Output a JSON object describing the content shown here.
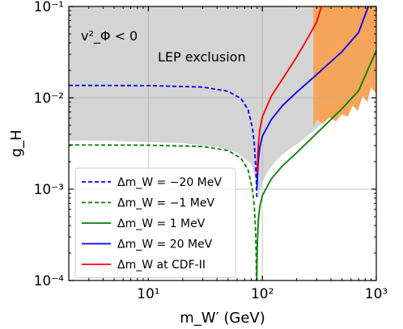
{
  "chart_data": {
    "type": "line",
    "xscale": "log",
    "yscale": "log",
    "xlim": [
      2,
      1000
    ],
    "ylim": [
      0.0001,
      0.1
    ],
    "x_ticks": [
      {
        "value": 10,
        "label": "10¹"
      },
      {
        "value": 100,
        "label": "10²"
      },
      {
        "value": 1000,
        "label": "10³"
      }
    ],
    "y_ticks": [
      {
        "value": 0.1,
        "label": "10⁻¹"
      },
      {
        "value": 0.01,
        "label": "10⁻²"
      },
      {
        "value": 0.001,
        "label": "10⁻³"
      },
      {
        "value": 0.0001,
        "label": "10⁻⁴"
      }
    ],
    "xlabel": "m_W′ (GeV)",
    "ylabel": "g_H",
    "grid": true,
    "legend_position": "lower-left",
    "annotations": [
      "v²_Φ < 0",
      "LEP exclusion"
    ],
    "regions": [
      {
        "name": "v²_Φ < 0",
        "color": "#6b6b6b",
        "points": [
          [
            2,
            0.1
          ],
          [
            23,
            0.1
          ],
          [
            2,
            0.007
          ]
        ]
      },
      {
        "name": "LEP exclusion",
        "color": "#d4d4d4",
        "points": [
          [
            2,
            0.1
          ],
          [
            1000,
            0.1
          ],
          [
            1000,
            0.026
          ],
          [
            600,
            0.011
          ],
          [
            400,
            0.0065
          ],
          [
            280,
            0.0043
          ],
          [
            200,
            0.0031
          ],
          [
            150,
            0.0024
          ],
          [
            125,
            0.0019
          ],
          [
            110,
            0.0015
          ],
          [
            100,
            0.0012
          ],
          [
            93,
            0.0008
          ],
          [
            88,
            0.0012
          ],
          [
            80,
            0.0019
          ],
          [
            60,
            0.0025
          ],
          [
            40,
            0.0029
          ],
          [
            20,
            0.0032
          ],
          [
            8,
            0.0033
          ],
          [
            4,
            0.0034
          ],
          [
            2,
            0.0034
          ]
        ]
      },
      {
        "name": "CDF-II",
        "color": "#f5a55a",
        "points": [
          [
            280,
            0.1
          ],
          [
            1000,
            0.1
          ],
          [
            1000,
            0.011
          ],
          [
            900,
            0.013
          ],
          [
            830,
            0.009
          ],
          [
            760,
            0.0105
          ],
          [
            690,
            0.0072
          ],
          [
            620,
            0.0082
          ],
          [
            560,
            0.0062
          ],
          [
            500,
            0.0066
          ],
          [
            440,
            0.0055
          ],
          [
            390,
            0.0061
          ],
          [
            340,
            0.0052
          ],
          [
            300,
            0.0058
          ],
          [
            280,
            0.0048
          ]
        ]
      }
    ],
    "series": [
      {
        "name": "Δm_W = −20 MeV",
        "color": "#0000ff",
        "style": "dashed",
        "points": [
          [
            2,
            0.0137
          ],
          [
            10,
            0.0136
          ],
          [
            30,
            0.0131
          ],
          [
            50,
            0.0118
          ],
          [
            65,
            0.0098
          ],
          [
            75,
            0.0074
          ],
          [
            82,
            0.0046
          ],
          [
            85,
            0.0031
          ],
          [
            88,
            0.0015
          ],
          [
            89.5,
            0.0008
          ]
        ]
      },
      {
        "name": "Δm_W = −1 MeV",
        "color": "#008000",
        "style": "dashed",
        "points": [
          [
            2,
            0.00305
          ],
          [
            10,
            0.00303
          ],
          [
            30,
            0.00293
          ],
          [
            50,
            0.00265
          ],
          [
            65,
            0.00218
          ],
          [
            75,
            0.00162
          ],
          [
            82,
            0.00097
          ],
          [
            85,
            0.00063
          ],
          [
            87,
            0.00037
          ],
          [
            88,
            0.00022
          ],
          [
            88.8,
            0.0001
          ]
        ]
      },
      {
        "name": "Δm_W = 1 MeV",
        "color": "#008000",
        "style": "solid",
        "points": [
          [
            89.3,
            0.0001
          ],
          [
            90,
            0.00022
          ],
          [
            92,
            0.00045
          ],
          [
            95,
            0.00065
          ],
          [
            100,
            0.00085
          ],
          [
            120,
            0.0013
          ],
          [
            150,
            0.0018
          ],
          [
            200,
            0.0025
          ],
          [
            300,
            0.0041
          ],
          [
            500,
            0.0076
          ],
          [
            700,
            0.012
          ],
          [
            1000,
            0.033
          ]
        ]
      },
      {
        "name": "Δm_W = 20 MeV",
        "color": "#0000ff",
        "style": "solid",
        "points": [
          [
            89.5,
            0.001
          ],
          [
            92,
            0.002
          ],
          [
            95,
            0.0029
          ],
          [
            100,
            0.0038
          ],
          [
            120,
            0.0058
          ],
          [
            150,
            0.0082
          ],
          [
            200,
            0.0115
          ],
          [
            300,
            0.018
          ],
          [
            500,
            0.032
          ],
          [
            700,
            0.052
          ],
          [
            850,
            0.1
          ]
        ]
      },
      {
        "name": "Δm_W at CDF-II",
        "color": "#ff0000",
        "style": "solid",
        "points": [
          [
            89.6,
            0.0015
          ],
          [
            92,
            0.003
          ],
          [
            95,
            0.0045
          ],
          [
            100,
            0.0062
          ],
          [
            120,
            0.0105
          ],
          [
            150,
            0.016
          ],
          [
            200,
            0.028
          ],
          [
            250,
            0.045
          ],
          [
            300,
            0.068
          ],
          [
            330,
            0.1
          ]
        ]
      }
    ]
  }
}
